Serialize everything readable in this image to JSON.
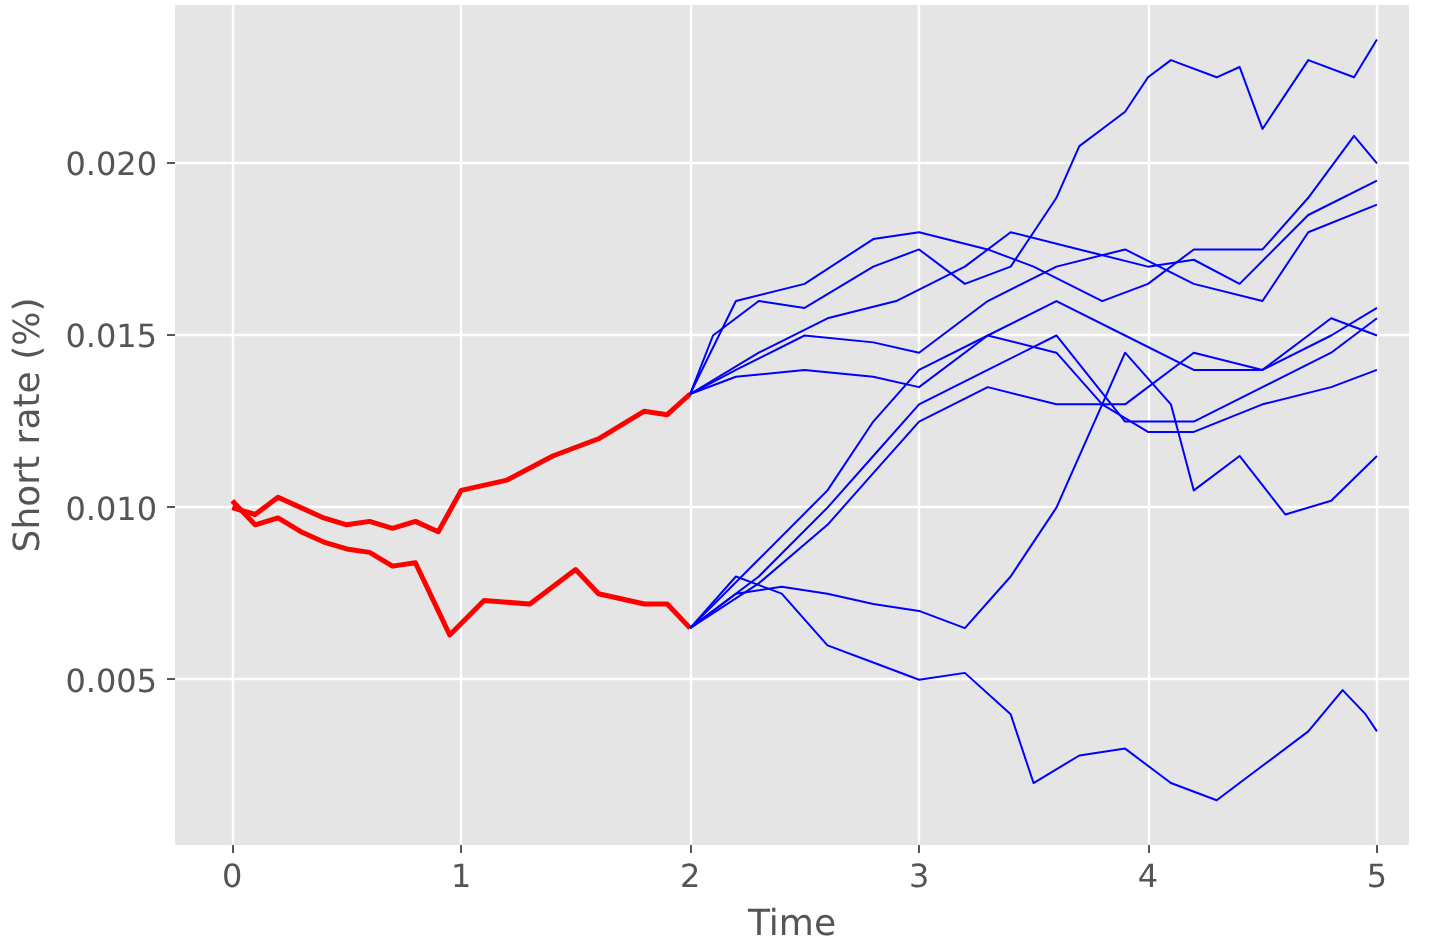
{
  "chart_data": {
    "type": "line",
    "xlabel": "Time",
    "ylabel": "Short rate (%)",
    "xlim": [
      -0.25,
      5.14
    ],
    "ylim": [
      0.0002,
      0.0246
    ],
    "xticks": [
      0,
      1,
      2,
      3,
      4,
      5
    ],
    "yticks": [
      {
        "value": 0.005,
        "label": "0.005"
      },
      {
        "value": 0.01,
        "label": "0.010"
      },
      {
        "value": 0.015,
        "label": "0.015"
      },
      {
        "value": 0.02,
        "label": "0.020"
      }
    ],
    "grid": true,
    "marker": "none",
    "line_style": "solid",
    "series": [
      {
        "color": "#ff0000",
        "x": [
          0,
          0.1,
          0.2,
          0.3,
          0.4,
          0.5,
          0.6,
          0.7,
          0.8,
          0.9,
          1.0,
          1.2,
          1.4,
          1.6,
          1.8,
          1.9,
          2.0
        ],
        "values": [
          0.01,
          0.0098,
          0.0103,
          0.01,
          0.0097,
          0.0095,
          0.0096,
          0.0094,
          0.0096,
          0.0093,
          0.0105,
          0.0108,
          0.0115,
          0.012,
          0.0128,
          0.0127,
          0.0133
        ]
      },
      {
        "color": "#ff0000",
        "x": [
          0,
          0.1,
          0.2,
          0.3,
          0.4,
          0.5,
          0.6,
          0.7,
          0.8,
          0.9,
          0.95,
          1.1,
          1.3,
          1.5,
          1.6,
          1.8,
          1.9,
          2.0
        ],
        "values": [
          0.0102,
          0.0095,
          0.0097,
          0.0093,
          0.009,
          0.0088,
          0.0087,
          0.0083,
          0.0084,
          0.007,
          0.0063,
          0.0073,
          0.0072,
          0.0082,
          0.0075,
          0.0072,
          0.0072,
          0.0065
        ]
      },
      {
        "color": "#0000ff",
        "x": [
          2,
          2.1,
          2.3,
          2.5,
          2.8,
          3.0,
          3.2,
          3.4,
          3.5,
          3.6,
          3.7,
          3.8,
          3.9,
          4.0,
          4.1,
          4.3,
          4.4,
          4.5,
          4.7,
          4.9,
          5.0
        ],
        "values": [
          0.0133,
          0.015,
          0.016,
          0.0158,
          0.017,
          0.0175,
          0.0165,
          0.017,
          0.018,
          0.019,
          0.0205,
          0.021,
          0.0215,
          0.0225,
          0.023,
          0.0225,
          0.0228,
          0.021,
          0.023,
          0.0225,
          0.0236
        ]
      },
      {
        "color": "#0000ff",
        "x": [
          2,
          2.2,
          2.5,
          2.8,
          3.0,
          3.3,
          3.5,
          3.8,
          4.0,
          4.2,
          4.5,
          4.7,
          4.9,
          5.0
        ],
        "values": [
          0.0133,
          0.016,
          0.0165,
          0.0178,
          0.018,
          0.0175,
          0.017,
          0.016,
          0.0165,
          0.0175,
          0.0175,
          0.019,
          0.0208,
          0.02
        ]
      },
      {
        "color": "#0000ff",
        "x": [
          2,
          2.3,
          2.6,
          2.9,
          3.2,
          3.4,
          3.7,
          4.0,
          4.2,
          4.4,
          4.7,
          5.0
        ],
        "values": [
          0.0133,
          0.0145,
          0.0155,
          0.016,
          0.017,
          0.018,
          0.0175,
          0.017,
          0.0172,
          0.0165,
          0.0185,
          0.0195
        ]
      },
      {
        "color": "#0000ff",
        "x": [
          2,
          2.2,
          2.5,
          2.8,
          3.0,
          3.3,
          3.6,
          3.9,
          4.2,
          4.5,
          4.7,
          5.0
        ],
        "values": [
          0.0133,
          0.014,
          0.015,
          0.0148,
          0.0145,
          0.016,
          0.017,
          0.0175,
          0.0165,
          0.016,
          0.018,
          0.0188
        ]
      },
      {
        "color": "#0000ff",
        "x": [
          2,
          2.2,
          2.5,
          2.8,
          3.0,
          3.3,
          3.6,
          3.8,
          4.0,
          4.2,
          4.5,
          4.8,
          5.0
        ],
        "values": [
          0.0133,
          0.0138,
          0.014,
          0.0138,
          0.0135,
          0.015,
          0.0145,
          0.013,
          0.0122,
          0.0122,
          0.013,
          0.0135,
          0.014
        ]
      },
      {
        "color": "#0000ff",
        "x": [
          2,
          2.2,
          2.4,
          2.6,
          2.8,
          3.0,
          3.2,
          3.4,
          3.5,
          3.7,
          3.9,
          4.1,
          4.3,
          4.5,
          4.7,
          4.85,
          4.95,
          5.0
        ],
        "values": [
          0.0065,
          0.008,
          0.0075,
          0.006,
          0.0055,
          0.005,
          0.0052,
          0.004,
          0.002,
          0.0028,
          0.003,
          0.002,
          0.0015,
          0.0025,
          0.0035,
          0.0047,
          0.004,
          0.0035
        ]
      },
      {
        "color": "#0000ff",
        "x": [
          2,
          2.2,
          2.4,
          2.6,
          2.8,
          3.0,
          3.2,
          3.4,
          3.6,
          3.8,
          3.9,
          4.1,
          4.2,
          4.4,
          4.6,
          4.8,
          5.0
        ],
        "values": [
          0.0065,
          0.0075,
          0.0077,
          0.0075,
          0.0072,
          0.007,
          0.0065,
          0.008,
          0.01,
          0.013,
          0.0145,
          0.013,
          0.0105,
          0.0115,
          0.0098,
          0.0102,
          0.0115
        ]
      },
      {
        "color": "#0000ff",
        "x": [
          2,
          2.3,
          2.6,
          2.8,
          3.0,
          3.3,
          3.6,
          3.9,
          4.2,
          4.5,
          4.8,
          5.0
        ],
        "values": [
          0.0065,
          0.0085,
          0.0105,
          0.0125,
          0.014,
          0.015,
          0.016,
          0.015,
          0.014,
          0.014,
          0.015,
          0.0158
        ]
      },
      {
        "color": "#0000ff",
        "x": [
          2,
          2.3,
          2.6,
          2.8,
          3.0,
          3.3,
          3.6,
          3.9,
          4.2,
          4.5,
          4.8,
          5.0
        ],
        "values": [
          0.0065,
          0.008,
          0.01,
          0.0115,
          0.013,
          0.014,
          0.015,
          0.0125,
          0.0125,
          0.0135,
          0.0145,
          0.0155
        ]
      },
      {
        "color": "#0000ff",
        "x": [
          2,
          2.3,
          2.6,
          2.8,
          3.0,
          3.3,
          3.6,
          3.9,
          4.2,
          4.5,
          4.8,
          5.0
        ],
        "values": [
          0.0065,
          0.0078,
          0.0095,
          0.011,
          0.0125,
          0.0135,
          0.013,
          0.013,
          0.0145,
          0.014,
          0.0155,
          0.015
        ]
      }
    ]
  }
}
